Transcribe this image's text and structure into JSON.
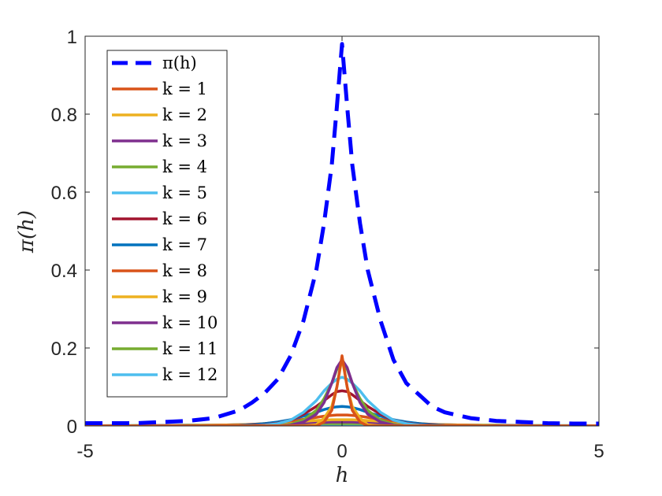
{
  "chart_data": {
    "type": "line",
    "xlabel": "h",
    "ylabel": "π(h)",
    "xlim": [
      -5,
      5
    ],
    "ylim": [
      0,
      1
    ],
    "x_ticks": [
      -5,
      0,
      5
    ],
    "x_tick_labels": [
      "-5",
      "0",
      "5"
    ],
    "y_ticks": [
      0,
      0.2,
      0.4,
      0.6,
      0.8,
      1
    ],
    "y_tick_labels": [
      "0",
      "0.2",
      "0.4",
      "0.6",
      "0.8",
      "1"
    ],
    "grid": false,
    "legend_position": "top-left",
    "x": [
      -5,
      -4.5,
      -4,
      -3.5,
      -3,
      -2.5,
      -2,
      -1.75,
      -1.5,
      -1.25,
      -1,
      -0.75,
      -0.5,
      -0.35,
      -0.2,
      -0.1,
      0,
      0.1,
      0.2,
      0.35,
      0.5,
      0.75,
      1,
      1.25,
      1.5,
      1.75,
      2,
      2.5,
      3,
      3.5,
      4,
      4.5,
      5
    ],
    "series": [
      {
        "name": "π(h)",
        "color": "#0000ff",
        "dashed": true,
        "values": [
          0.007,
          0.007,
          0.007,
          0.01,
          0.013,
          0.02,
          0.04,
          0.06,
          0.085,
          0.12,
          0.18,
          0.27,
          0.4,
          0.52,
          0.67,
          0.82,
          0.98,
          0.82,
          0.67,
          0.52,
          0.4,
          0.27,
          0.17,
          0.11,
          0.08,
          0.05,
          0.035,
          0.02,
          0.013,
          0.01,
          0.007,
          0.006,
          0.006
        ]
      },
      {
        "name": "k = 1",
        "color": "#d95319",
        "dashed": false,
        "values": [
          0,
          0,
          0,
          0,
          0,
          0,
          0,
          0,
          0,
          0,
          0,
          0,
          0,
          0.01,
          0.04,
          0.1,
          0.18,
          0.1,
          0.04,
          0.01,
          0,
          0,
          0,
          0,
          0,
          0,
          0,
          0,
          0,
          0,
          0,
          0,
          0
        ]
      },
      {
        "name": "k = 2",
        "color": "#edb120",
        "dashed": false,
        "values": [
          0,
          0,
          0,
          0,
          0,
          0,
          0,
          0,
          0,
          0,
          0,
          0,
          0.003,
          0.02,
          0.05,
          0.1,
          0.175,
          0.1,
          0.05,
          0.02,
          0.003,
          0,
          0,
          0,
          0,
          0,
          0,
          0,
          0,
          0,
          0,
          0,
          0
        ]
      },
      {
        "name": "k = 3",
        "color": "#7e2f8e",
        "dashed": false,
        "values": [
          0,
          0,
          0,
          0,
          0,
          0,
          0,
          0,
          0,
          0,
          0.002,
          0.01,
          0.03,
          0.06,
          0.11,
          0.15,
          0.17,
          0.15,
          0.11,
          0.06,
          0.03,
          0.01,
          0.002,
          0,
          0,
          0,
          0,
          0,
          0,
          0,
          0,
          0,
          0
        ]
      },
      {
        "name": "k = 4",
        "color": "#77ac30",
        "dashed": false,
        "values": [
          0,
          0,
          0,
          0,
          0,
          0,
          0,
          0,
          0,
          0,
          0.004,
          0.015,
          0.04,
          0.07,
          0.11,
          0.145,
          0.16,
          0.145,
          0.11,
          0.07,
          0.04,
          0.015,
          0.004,
          0,
          0,
          0,
          0,
          0,
          0,
          0,
          0,
          0,
          0
        ]
      },
      {
        "name": "k = 5",
        "color": "#4dbeee",
        "dashed": false,
        "values": [
          0,
          0,
          0,
          0,
          0,
          0,
          0,
          0,
          0.002,
          0.006,
          0.015,
          0.035,
          0.065,
          0.09,
          0.11,
          0.12,
          0.125,
          0.12,
          0.11,
          0.09,
          0.065,
          0.035,
          0.015,
          0.006,
          0.002,
          0,
          0,
          0,
          0,
          0,
          0,
          0,
          0
        ]
      },
      {
        "name": "k = 6",
        "color": "#a2142f",
        "dashed": false,
        "values": [
          0,
          0,
          0,
          0,
          0,
          0,
          0,
          0.001,
          0.003,
          0.007,
          0.015,
          0.03,
          0.05,
          0.065,
          0.08,
          0.088,
          0.09,
          0.088,
          0.08,
          0.065,
          0.05,
          0.03,
          0.015,
          0.007,
          0.003,
          0.001,
          0,
          0,
          0,
          0,
          0,
          0,
          0
        ]
      },
      {
        "name": "k = 7",
        "color": "#0072bd",
        "dashed": false,
        "values": [
          0,
          0,
          0,
          0,
          0,
          0,
          0.001,
          0.003,
          0.006,
          0.01,
          0.016,
          0.025,
          0.035,
          0.042,
          0.047,
          0.049,
          0.05,
          0.049,
          0.047,
          0.042,
          0.035,
          0.025,
          0.016,
          0.01,
          0.006,
          0.003,
          0.001,
          0,
          0,
          0,
          0,
          0,
          0
        ]
      },
      {
        "name": "k = 8",
        "color": "#d95319",
        "dashed": false,
        "values": [
          0,
          0,
          0,
          0,
          0,
          0.001,
          0.002,
          0.004,
          0.006,
          0.009,
          0.013,
          0.017,
          0.022,
          0.025,
          0.027,
          0.028,
          0.028,
          0.028,
          0.027,
          0.025,
          0.022,
          0.017,
          0.013,
          0.009,
          0.006,
          0.004,
          0.002,
          0.001,
          0,
          0,
          0,
          0,
          0
        ]
      },
      {
        "name": "k = 9",
        "color": "#edb120",
        "dashed": false,
        "values": [
          0,
          0,
          0,
          0,
          0.001,
          0.002,
          0.003,
          0.004,
          0.006,
          0.008,
          0.01,
          0.012,
          0.014,
          0.015,
          0.016,
          0.016,
          0.016,
          0.016,
          0.016,
          0.015,
          0.014,
          0.012,
          0.01,
          0.008,
          0.006,
          0.004,
          0.003,
          0.002,
          0.001,
          0,
          0,
          0,
          0
        ]
      },
      {
        "name": "k = 10",
        "color": "#7e2f8e",
        "dashed": false,
        "values": [
          0,
          0,
          0,
          0.001,
          0.001,
          0.002,
          0.003,
          0.004,
          0.005,
          0.006,
          0.007,
          0.008,
          0.009,
          0.009,
          0.01,
          0.01,
          0.01,
          0.01,
          0.01,
          0.009,
          0.009,
          0.008,
          0.007,
          0.006,
          0.005,
          0.004,
          0.003,
          0.002,
          0.001,
          0.001,
          0,
          0,
          0
        ]
      },
      {
        "name": "k = 11",
        "color": "#77ac30",
        "dashed": false,
        "values": [
          0,
          0,
          0.001,
          0.001,
          0.002,
          0.002,
          0.003,
          0.003,
          0.004,
          0.004,
          0.005,
          0.005,
          0.006,
          0.006,
          0.006,
          0.006,
          0.006,
          0.006,
          0.006,
          0.006,
          0.006,
          0.005,
          0.005,
          0.004,
          0.004,
          0.003,
          0.003,
          0.002,
          0.002,
          0.001,
          0.001,
          0,
          0
        ]
      },
      {
        "name": "k = 12",
        "color": "#4dbeee",
        "dashed": false,
        "values": [
          0,
          0.001,
          0.001,
          0.001,
          0.002,
          0.002,
          0.002,
          0.003,
          0.003,
          0.003,
          0.003,
          0.004,
          0.004,
          0.004,
          0.004,
          0.004,
          0.004,
          0.004,
          0.004,
          0.004,
          0.004,
          0.004,
          0.003,
          0.003,
          0.003,
          0.003,
          0.002,
          0.002,
          0.002,
          0.001,
          0.001,
          0.001,
          0
        ]
      }
    ]
  }
}
